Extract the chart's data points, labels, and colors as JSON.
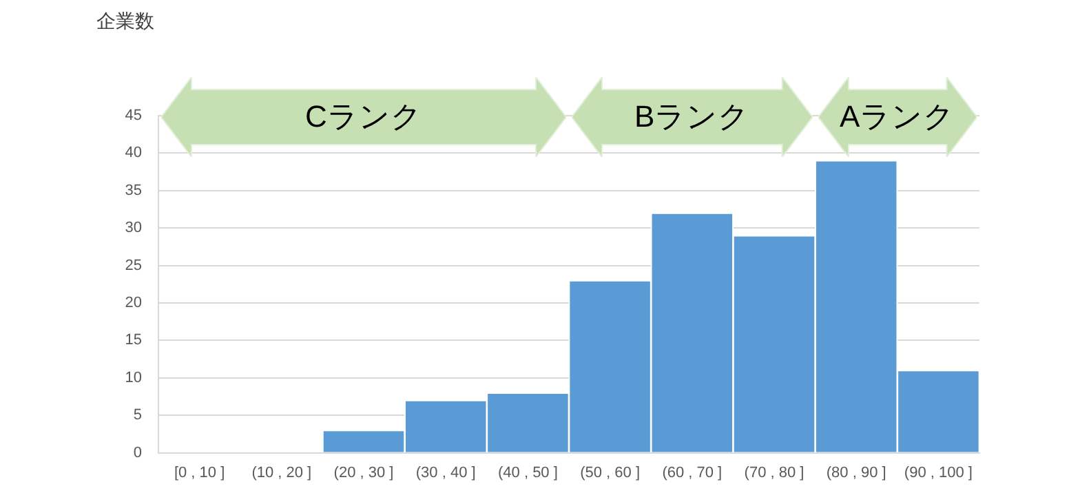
{
  "chart_data": {
    "type": "bar",
    "ylabel": "企業数",
    "categories": [
      "[0 , 10 ]",
      "(10 , 20 ]",
      "(20 , 30 ]",
      "(30 , 40 ]",
      "(40 , 50 ]",
      "(50 , 60 ]",
      "(60 , 70 ]",
      "(70 , 80 ]",
      "(80 , 90 ]",
      "(90 , 100 ]"
    ],
    "values": [
      0,
      0,
      3,
      7,
      8,
      23,
      32,
      29,
      39,
      11
    ],
    "color": "#5b9bd5",
    "ylim": [
      0,
      45
    ],
    "yticks": [
      0,
      5,
      10,
      15,
      20,
      25,
      30,
      35,
      40,
      45
    ],
    "grid": "y",
    "annotations": [
      "Cランク",
      "Bランク",
      "Aランク"
    ]
  }
}
